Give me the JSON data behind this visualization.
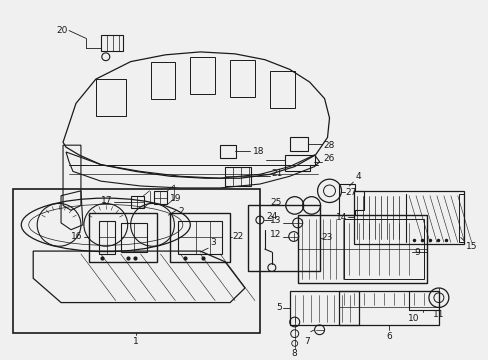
{
  "bg_color": "#f0f0f0",
  "line_color": "#1a1a1a",
  "fig_width": 4.89,
  "fig_height": 3.6,
  "dpi": 100
}
